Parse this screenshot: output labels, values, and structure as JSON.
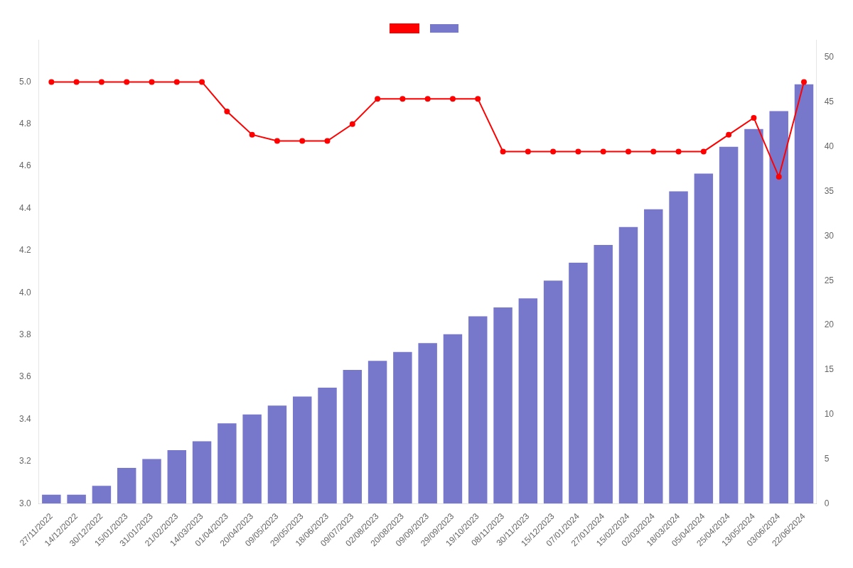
{
  "chart_data": {
    "type": "bar",
    "categories": [
      "27/11/2022",
      "14/12/2022",
      "30/12/2022",
      "15/01/2023",
      "31/01/2023",
      "21/02/2023",
      "14/03/2023",
      "01/04/2023",
      "20/04/2023",
      "09/05/2023",
      "29/05/2023",
      "18/06/2023",
      "09/07/2023",
      "02/08/2023",
      "20/08/2023",
      "09/09/2023",
      "29/09/2023",
      "19/10/2023",
      "08/11/2023",
      "30/11/2023",
      "15/12/2023",
      "07/01/2024",
      "27/01/2024",
      "15/02/2024",
      "02/03/2024",
      "18/03/2024",
      "05/04/2024",
      "25/04/2024",
      "13/05/2024",
      "03/06/2024",
      "22/06/2024"
    ],
    "series": [
      {
        "type": "line",
        "color": "#ff0000",
        "marker": "circle",
        "values": [
          5.0,
          5.0,
          5.0,
          5.0,
          5.0,
          5.0,
          5.0,
          4.86,
          4.75,
          4.72,
          4.72,
          4.72,
          4.8,
          4.92,
          4.92,
          4.92,
          4.92,
          4.92,
          4.67,
          4.67,
          4.67,
          4.67,
          4.67,
          4.67,
          4.67,
          4.67,
          4.67,
          4.75,
          4.83,
          4.55,
          5.0
        ]
      },
      {
        "type": "bar",
        "color": "#7777cc",
        "axis": "y2",
        "values": [
          1,
          1,
          2,
          4,
          5,
          6,
          7,
          9,
          10,
          11,
          12,
          13,
          15,
          16,
          17,
          18,
          19,
          21,
          22,
          23,
          25,
          27,
          29,
          31,
          33,
          35,
          37,
          40,
          42,
          44,
          47
        ]
      }
    ],
    "ylim": [
      3.0,
      5.2
    ],
    "yticks": [
      {
        "value": 3.0,
        "label": "3.0"
      },
      3.2,
      3.4,
      3.6,
      3.8,
      {
        "value": 4.0,
        "label": "4.0"
      },
      4.2,
      4.4,
      4.6,
      4.8,
      {
        "value": 5.0,
        "label": "5.0"
      }
    ],
    "y2lim": [
      0,
      52
    ],
    "y2ticks": [
      0,
      5,
      10,
      15,
      20,
      25,
      30,
      35,
      40,
      45,
      50
    ],
    "grid": false,
    "legend": "top"
  }
}
